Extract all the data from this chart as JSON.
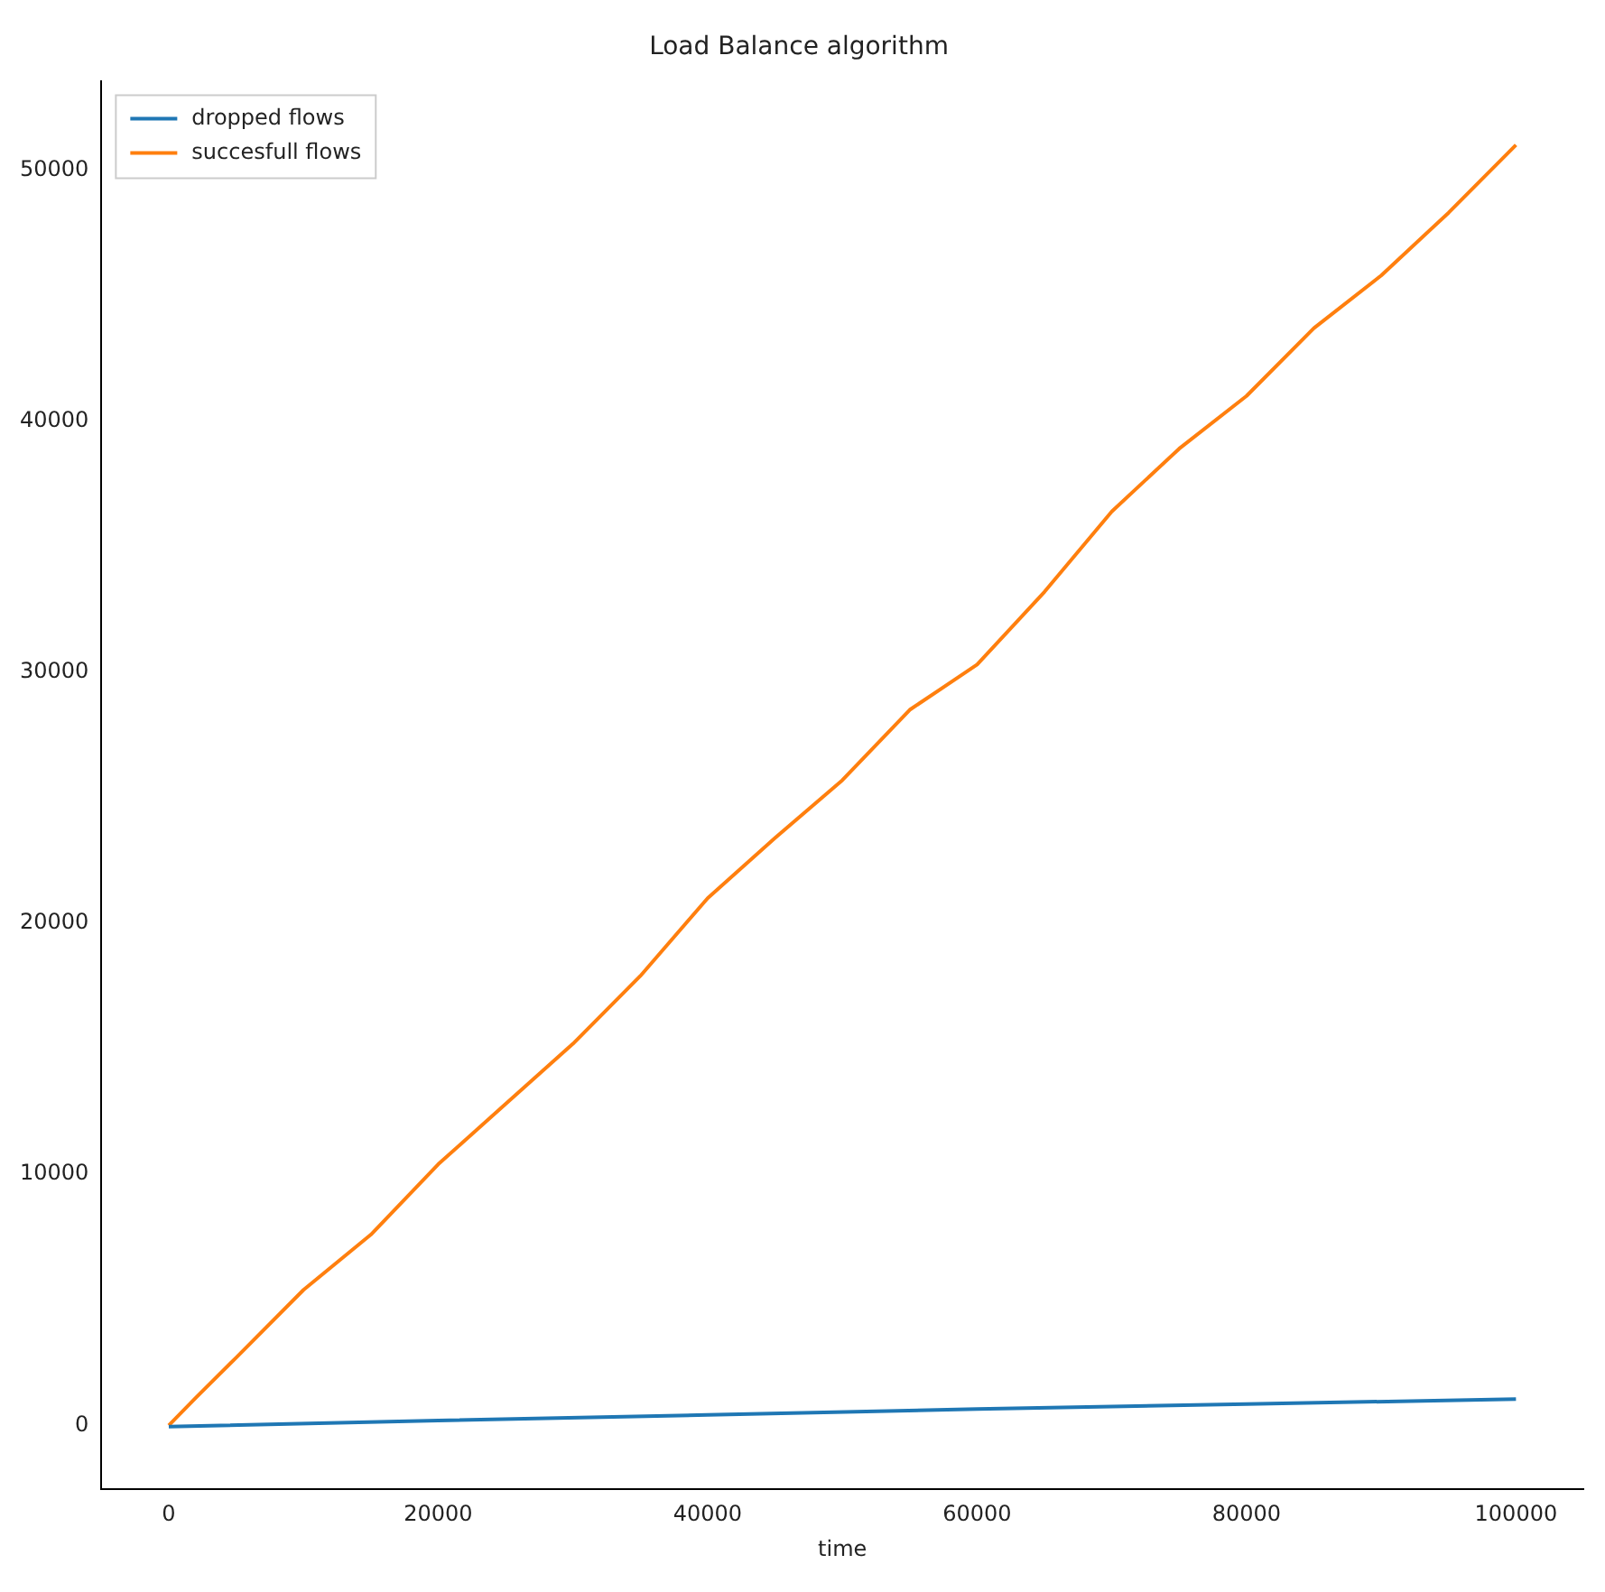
{
  "chart_data": {
    "type": "line",
    "title": "Load Balance algorithm",
    "xlabel": "time",
    "xlim": [
      -5000,
      105000
    ],
    "xticks": [
      0,
      20000,
      40000,
      60000,
      80000,
      100000
    ],
    "ylim": [
      -2550,
      53550
    ],
    "yticks": [
      0,
      10000,
      20000,
      30000,
      40000,
      50000
    ],
    "grid": false,
    "legend": "top left",
    "marker": "none",
    "line_style": "solid",
    "series": [
      {
        "name": "dropped flows",
        "color": "#1f77b4",
        "x": [
          0,
          20000,
          40000,
          60000,
          80000,
          100000
        ],
        "values": [
          -50,
          200,
          420,
          650,
          850,
          1050
        ]
      },
      {
        "name": "succesfull flows",
        "color": "#ff7f0e",
        "x": [
          0,
          2000,
          5000,
          10000,
          15000,
          20000,
          25000,
          30000,
          35000,
          40000,
          45000,
          50000,
          55000,
          60000,
          65000,
          70000,
          75000,
          80000,
          85000,
          90000,
          95000,
          100000
        ],
        "values": [
          0,
          1100,
          2700,
          5400,
          7600,
          10400,
          12800,
          15200,
          17900,
          21000,
          23400,
          25700,
          28500,
          30300,
          33200,
          36400,
          38900,
          41000,
          43700,
          45800,
          48300,
          51000
        ]
      }
    ]
  }
}
